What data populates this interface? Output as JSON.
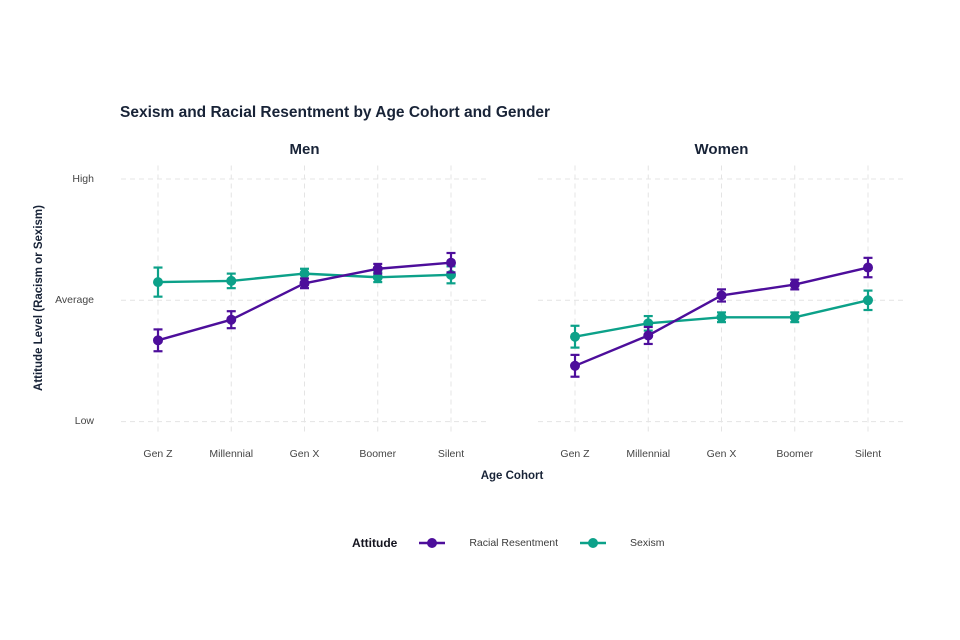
{
  "chart": {
    "title": "Sexism and Racial Resentment by Age Cohort and Gender",
    "x_axis_title": "Age Cohort",
    "y_axis_title": "Attitude Level (Racism or Sexism)",
    "legend_title": "Attitude"
  },
  "chart_data": {
    "type": "line",
    "subtype": "point-range-with-error-bars",
    "title": "Sexism and Racial Resentment by Age Cohort and Gender",
    "xlabel": "Age Cohort",
    "ylabel": "Attitude Level (Racism or Sexism)",
    "categories": [
      "Gen Z",
      "Millennial",
      "Gen X",
      "Boomer",
      "Silent"
    ],
    "y_ticks": [
      {
        "label": "High",
        "value": 1
      },
      {
        "label": "Average",
        "value": 0
      },
      {
        "label": "Low",
        "value": -1
      }
    ],
    "ylim": [
      -1.11,
      1.11
    ],
    "grid": "dashed-light-gray",
    "legend_position": "bottom",
    "facets": [
      {
        "label": "Men",
        "series": [
          {
            "name": "Racial Resentment",
            "color": "#4d0e9b",
            "values": [
              -0.33,
              -0.16,
              0.14,
              0.26,
              0.31
            ],
            "errors": [
              0.09,
              0.07,
              0.04,
              0.04,
              0.08
            ]
          },
          {
            "name": "Sexism",
            "color": "#0ca189",
            "values": [
              0.15,
              0.16,
              0.22,
              0.19,
              0.21
            ],
            "errors": [
              0.12,
              0.06,
              0.04,
              0.04,
              0.07
            ]
          }
        ]
      },
      {
        "label": "Women",
        "series": [
          {
            "name": "Racial Resentment",
            "color": "#4d0e9b",
            "values": [
              -0.54,
              -0.29,
              0.04,
              0.13,
              0.27
            ],
            "errors": [
              0.09,
              0.07,
              0.05,
              0.04,
              0.08
            ]
          },
          {
            "name": "Sexism",
            "color": "#0ca189",
            "values": [
              -0.3,
              -0.19,
              -0.14,
              -0.14,
              0.0
            ],
            "errors": [
              0.09,
              0.06,
              0.04,
              0.04,
              0.08
            ]
          }
        ]
      }
    ],
    "colors": {
      "racial_resentment": "#4d0e9b",
      "sexism": "#0ca189",
      "heading_text": "#182337",
      "tick_text": "#454545",
      "grid": "#e4e4e4",
      "background": "#ffffff"
    }
  }
}
